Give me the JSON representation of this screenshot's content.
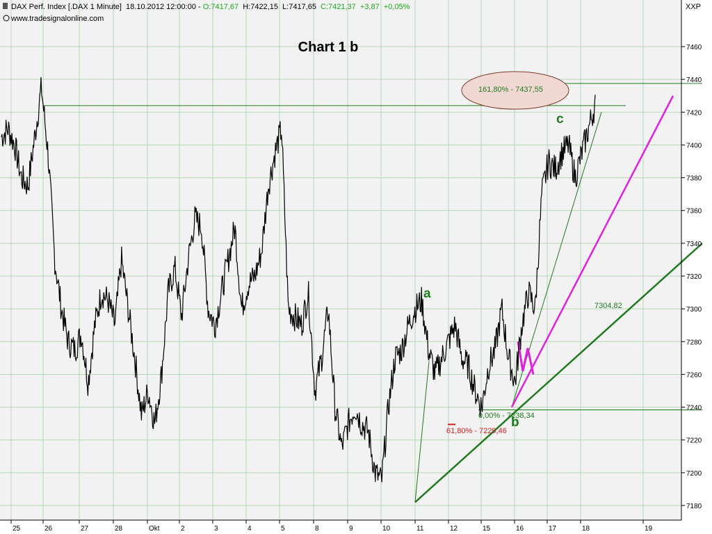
{
  "header": {
    "symbol": "DAX Perf. Index [.DAX  1 Minute]",
    "timestamp": "18.10.2012 12:00:00",
    "sep": " - ",
    "open": "O:7417,67",
    "high": "H:7422,15",
    "low": "L:7417,65",
    "close": "C:7421,37",
    "change": "+3,87",
    "pct": "+0,05%",
    "source": "www.tradesignalonline.com",
    "corner": "XXP"
  },
  "colors": {
    "background": "#f2f2f2",
    "grid": "#b5d8b5",
    "price": "#000000",
    "green_lines": "#1f7a1f",
    "magenta": "#e020e0",
    "red": "#d62020",
    "up": "#1aa81a",
    "ellipse_fill": "#f2d8d2",
    "ellipse_stroke": "#7a3a2a"
  },
  "chart_data": {
    "type": "line",
    "title": "Chart 1 b",
    "ylim": [
      7173,
      7478
    ],
    "y_ticks": [
      "7180",
      "7200",
      "7220",
      "7240",
      "7260",
      "7280",
      "7300",
      "7320",
      "7340",
      "7360",
      "7380",
      "7400",
      "7420",
      "7440",
      "7460"
    ],
    "x_labels": [
      "25",
      "26",
      "27",
      "28",
      "Okt",
      "2",
      "3",
      "4",
      "5",
      "8",
      "9",
      "10",
      "11",
      "12",
      "15",
      "16",
      "17",
      "18",
      "19"
    ],
    "series": [
      {
        "values": [
          7405,
          7410,
          7400,
          7380,
          7375,
          7405,
          7435,
          7395,
          7330,
          7300,
          7280,
          7275,
          7285,
          7255,
          7290,
          7310,
          7305,
          7290,
          7330,
          7300,
          7270,
          7235,
          7250,
          7230,
          7260,
          7310,
          7325,
          7295,
          7330,
          7355,
          7350,
          7300,
          7290,
          7310,
          7330,
          7350,
          7300,
          7315,
          7320,
          7335,
          7375,
          7395,
          7410,
          7300,
          7295,
          7290,
          7310,
          7250,
          7270,
          7300,
          7240,
          7215,
          7230,
          7240,
          7230,
          7225,
          7200,
          7195,
          7240,
          7270,
          7275,
          7290,
          7300,
          7305,
          7275,
          7260,
          7270,
          7280,
          7290,
          7270,
          7265,
          7250,
          7240,
          7265,
          7275,
          7300,
          7270,
          7255,
          7290,
          7310,
          7300,
          7370,
          7390,
          7385,
          7395,
          7400,
          7380,
          7395,
          7410,
          7425
        ]
      }
    ],
    "annotations": {
      "wave_a": "a",
      "wave_b": "b",
      "wave_c": "c",
      "fib_target": "161,80% - 7437,55",
      "fib_base": "0,00% - 7238,34",
      "fib_retrace": "61,80% - 7229,46",
      "trend_value": "7304,82"
    }
  }
}
